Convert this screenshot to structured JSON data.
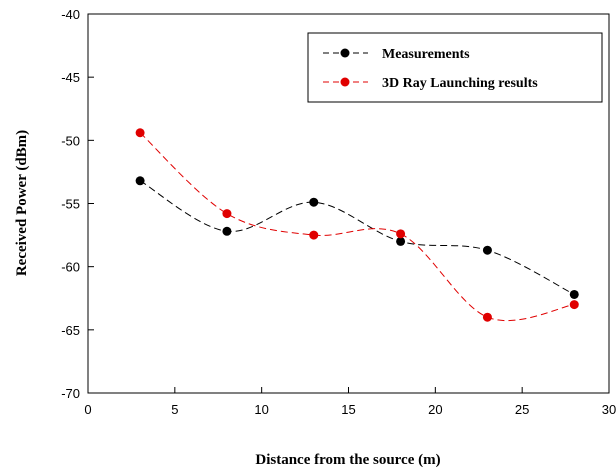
{
  "chart_data": {
    "type": "line",
    "xlabel": "Distance from the source (m)",
    "ylabel": "Received Power (dBm)",
    "xlim": [
      0,
      30
    ],
    "ylim": [
      -70,
      -40
    ],
    "x_ticks": [
      "0",
      "5",
      "10",
      "15",
      "20",
      "25",
      "30"
    ],
    "y_ticks": [
      "-40",
      "-45",
      "-50",
      "-55",
      "-60",
      "-65",
      "-70"
    ],
    "x_tick_values": [
      0,
      5,
      10,
      15,
      20,
      25,
      30
    ],
    "y_tick_values": [
      -40,
      -45,
      -50,
      -55,
      -60,
      -65,
      -70
    ],
    "grid": false,
    "legend_position": "top-right",
    "smooth": true,
    "series": [
      {
        "name": "Measurements",
        "color": "#000000",
        "x": [
          3,
          8,
          13,
          18,
          23,
          28
        ],
        "y": [
          -53.2,
          -57.2,
          -54.9,
          -58.0,
          -58.7,
          -62.2
        ]
      },
      {
        "name": "3D Ray Launching results",
        "color": "#e00000",
        "x": [
          3,
          8,
          13,
          18,
          23,
          28
        ],
        "y": [
          -49.4,
          -55.8,
          -57.5,
          -57.4,
          -64.0,
          -63.0
        ]
      }
    ]
  }
}
